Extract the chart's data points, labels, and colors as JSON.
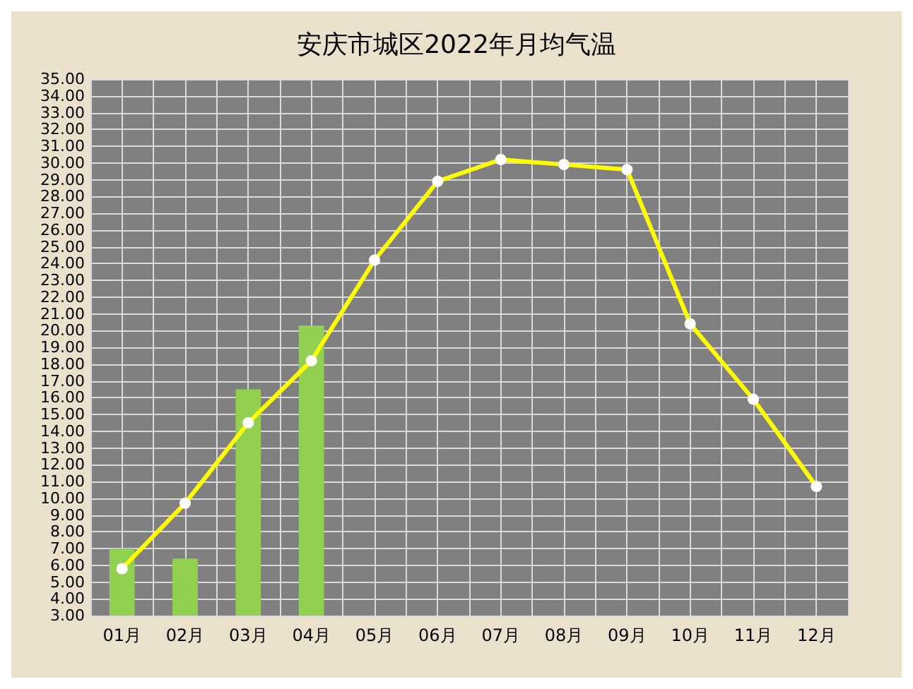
{
  "chart_data": {
    "type": "bar",
    "title": "安庆市城区2022年月均气温",
    "categories": [
      "01月",
      "02月",
      "03月",
      "04月",
      "05月",
      "06月",
      "07月",
      "08月",
      "09月",
      "10月",
      "11月",
      "12月"
    ],
    "series": [
      {
        "color": "#92d050",
        "values": [
          7.0,
          6.4,
          16.5,
          20.3,
          null,
          null,
          null,
          null,
          null,
          null,
          null,
          null
        ]
      },
      {
        "type": "line",
        "color": "#ffff00",
        "marker": "circle",
        "values": [
          5.8,
          9.7,
          14.5,
          18.2,
          24.2,
          28.9,
          30.2,
          29.9,
          29.6,
          20.4,
          15.9,
          10.7
        ]
      }
    ],
    "ylim": [
      3,
      35
    ],
    "yticks": [
      {
        "value": 3,
        "label": "3.00"
      },
      {
        "value": 4,
        "label": "4.00"
      },
      {
        "value": 5,
        "label": "5.00"
      },
      {
        "value": 6,
        "label": "6.00"
      },
      {
        "value": 7,
        "label": "7.00"
      },
      {
        "value": 8,
        "label": "8.00"
      },
      {
        "value": 9,
        "label": "9.00"
      },
      {
        "value": 10,
        "label": "10.00"
      },
      {
        "value": 11,
        "label": "11.00"
      },
      {
        "value": 12,
        "label": "12.00"
      },
      {
        "value": 13,
        "label": "13.00"
      },
      {
        "value": 14,
        "label": "14.00"
      },
      {
        "value": 15,
        "label": "15.00"
      },
      {
        "value": 16,
        "label": "16.00"
      },
      {
        "value": 17,
        "label": "17.00"
      },
      {
        "value": 18,
        "label": "18.00"
      },
      {
        "value": 19,
        "label": "19.00"
      },
      {
        "value": 20,
        "label": "20.00"
      },
      {
        "value": 21,
        "label": "21.00"
      },
      {
        "value": 22,
        "label": "22.00"
      },
      {
        "value": 23,
        "label": "23.00"
      },
      {
        "value": 24,
        "label": "24.00"
      },
      {
        "value": 25,
        "label": "25.00"
      },
      {
        "value": 26,
        "label": "26.00"
      },
      {
        "value": 27,
        "label": "27.00"
      },
      {
        "value": 28,
        "label": "28.00"
      },
      {
        "value": 29,
        "label": "29.00"
      },
      {
        "value": 30,
        "label": "30.00"
      },
      {
        "value": 31,
        "label": "31.00"
      },
      {
        "value": 32,
        "label": "32.00"
      },
      {
        "value": 33,
        "label": "33.00"
      },
      {
        "value": 34,
        "label": "34.00"
      },
      {
        "value": 35,
        "label": "35.00"
      }
    ],
    "grid": true
  }
}
